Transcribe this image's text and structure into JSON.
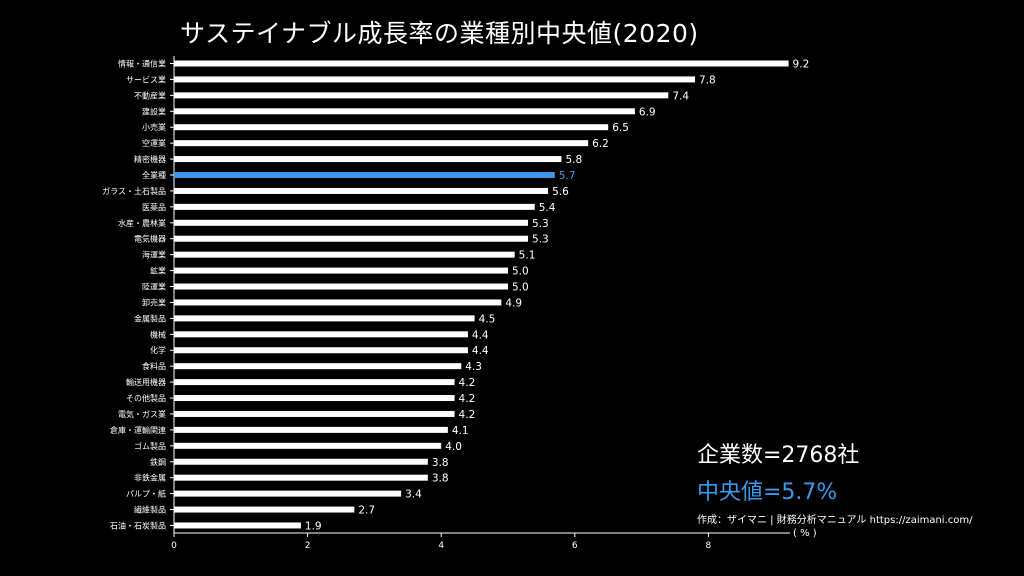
{
  "chart_data": {
    "type": "bar",
    "orientation": "horizontal",
    "title": "サステイナブル成長率の業種別中央値(2020)",
    "xlabel": "( % )",
    "ylabel": "",
    "xlim": [
      0,
      9
    ],
    "xticks": [
      0,
      2,
      4,
      6,
      8
    ],
    "categories": [
      "情報・通信業",
      "サービス業",
      "不動産業",
      "建設業",
      "小売業",
      "空運業",
      "精密機器",
      "全業種",
      "ガラス・土石製品",
      "医薬品",
      "水産・農林業",
      "電気機器",
      "海運業",
      "鉱業",
      "陸運業",
      "卸売業",
      "金属製品",
      "機械",
      "化学",
      "食料品",
      "輸送用機器",
      "その他製品",
      "電気・ガス業",
      "倉庫・運輸関連",
      "ゴム製品",
      "鉄鋼",
      "非鉄金属",
      "パルプ・紙",
      "繊維製品",
      "石油・石炭製品"
    ],
    "values": [
      9.2,
      7.8,
      7.4,
      6.9,
      6.5,
      6.2,
      5.8,
      5.7,
      5.6,
      5.4,
      5.3,
      5.3,
      5.1,
      5.0,
      5.0,
      4.9,
      4.5,
      4.4,
      4.4,
      4.3,
      4.2,
      4.2,
      4.2,
      4.1,
      4.0,
      3.8,
      3.8,
      3.4,
      2.7,
      1.9
    ],
    "value_labels": [
      "9.2",
      "7.8",
      "7.4",
      "6.9",
      "6.5",
      "6.2",
      "5.8",
      "5.7",
      "5.6",
      "5.4",
      "5.3",
      "5.3",
      "5.1",
      "5.0",
      "5.0",
      "4.9",
      "4.5",
      "4.4",
      "4.4",
      "4.3",
      "4.2",
      "4.2",
      "4.2",
      "4.1",
      "4.0",
      "3.8",
      "3.8",
      "3.4",
      "2.7",
      "1.9"
    ],
    "highlight_category": "全業種",
    "bar_color": "#ffffff",
    "highlight_color": "#3a99e8",
    "grid": false
  },
  "annotations": {
    "company_count": "企業数=2768社",
    "median": "中央値=5.7%",
    "source": "作成：ザイマニ | 財務分析マニュアル https://zaimani.com/"
  },
  "colors": {
    "background": "#000000",
    "text": "#ffffff",
    "accent": "#3a99e8"
  }
}
